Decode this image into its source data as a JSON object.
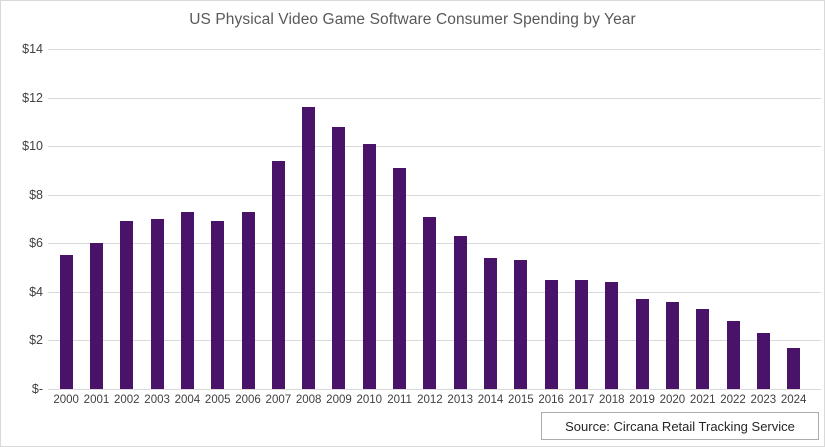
{
  "header": {
    "title": "US Physical Video Game Software Consumer Spending by Year"
  },
  "footer": {
    "source_label": "Source: Circana Retail Tracking Service"
  },
  "colors": {
    "bar": "#49136a",
    "gridline": "#d9d9d9",
    "title_text": "#595959",
    "tick_text": "#404040",
    "source_border": "#ababab",
    "frame_border": "#d9d9d9",
    "background": "#ffffff"
  },
  "chart_data": {
    "type": "bar",
    "title": "US Physical Video Game Software Consumer Spending by Year",
    "categories": [
      "2000",
      "2001",
      "2002",
      "2003",
      "2004",
      "2005",
      "2006",
      "2007",
      "2008",
      "2009",
      "2010",
      "2011",
      "2012",
      "2013",
      "2014",
      "2015",
      "2016",
      "2017",
      "2018",
      "2019",
      "2020",
      "2021",
      "2022",
      "2023",
      "2024"
    ],
    "values": [
      5.5,
      6.0,
      6.9,
      7.0,
      7.3,
      6.9,
      7.3,
      9.4,
      11.6,
      10.8,
      10.1,
      9.1,
      7.1,
      6.3,
      5.4,
      5.3,
      4.5,
      4.5,
      4.4,
      3.7,
      3.6,
      3.3,
      2.8,
      2.3,
      1.7
    ],
    "xlabel": "",
    "ylabel": "",
    "ylim": [
      0,
      14
    ],
    "y_ticks": [
      "$14",
      "$12",
      "$10",
      "$8",
      "$6",
      "$4",
      "$2",
      "$-"
    ],
    "y_tick_values": [
      14,
      12,
      10,
      8,
      6,
      4,
      2,
      0
    ],
    "grid": true,
    "legend": false,
    "bar_color": "#49136a",
    "source": "Source: Circana Retail Tracking Service"
  }
}
